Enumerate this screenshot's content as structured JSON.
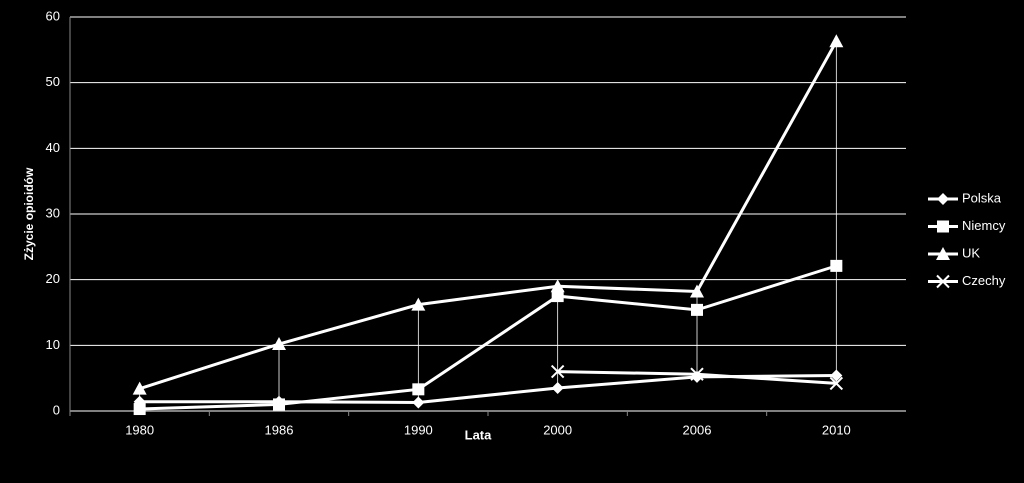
{
  "chart_data": {
    "type": "line",
    "x_label": "Lata",
    "y_label": "Zżycie opioidów",
    "categories": [
      "1980",
      "1986",
      "1990",
      "2000",
      "2006",
      "2010"
    ],
    "series": [
      {
        "name": "Polska",
        "color": "#ffffff",
        "marker": "diamond",
        "values": [
          1.4,
          1.4,
          1.3,
          3.5,
          5.2,
          5.4
        ]
      },
      {
        "name": "Niemcy",
        "color": "#ffffff",
        "marker": "square",
        "values": [
          0.3,
          1.0,
          3.3,
          17.5,
          15.4,
          22.1
        ]
      },
      {
        "name": "UK",
        "color": "#ffffff",
        "marker": "triangle",
        "values": [
          3.4,
          10.2,
          16.2,
          19.0,
          18.2,
          56.3
        ]
      },
      {
        "name": "Czechy",
        "color": "#ffffff",
        "marker": "x",
        "values": [
          null,
          null,
          null,
          6.0,
          5.6,
          4.2
        ]
      }
    ],
    "ylim": [
      0,
      60
    ],
    "yticks": [
      0,
      10,
      20,
      30,
      40,
      50,
      60
    ],
    "grid": true,
    "drop_lines": true,
    "legend": "right"
  }
}
